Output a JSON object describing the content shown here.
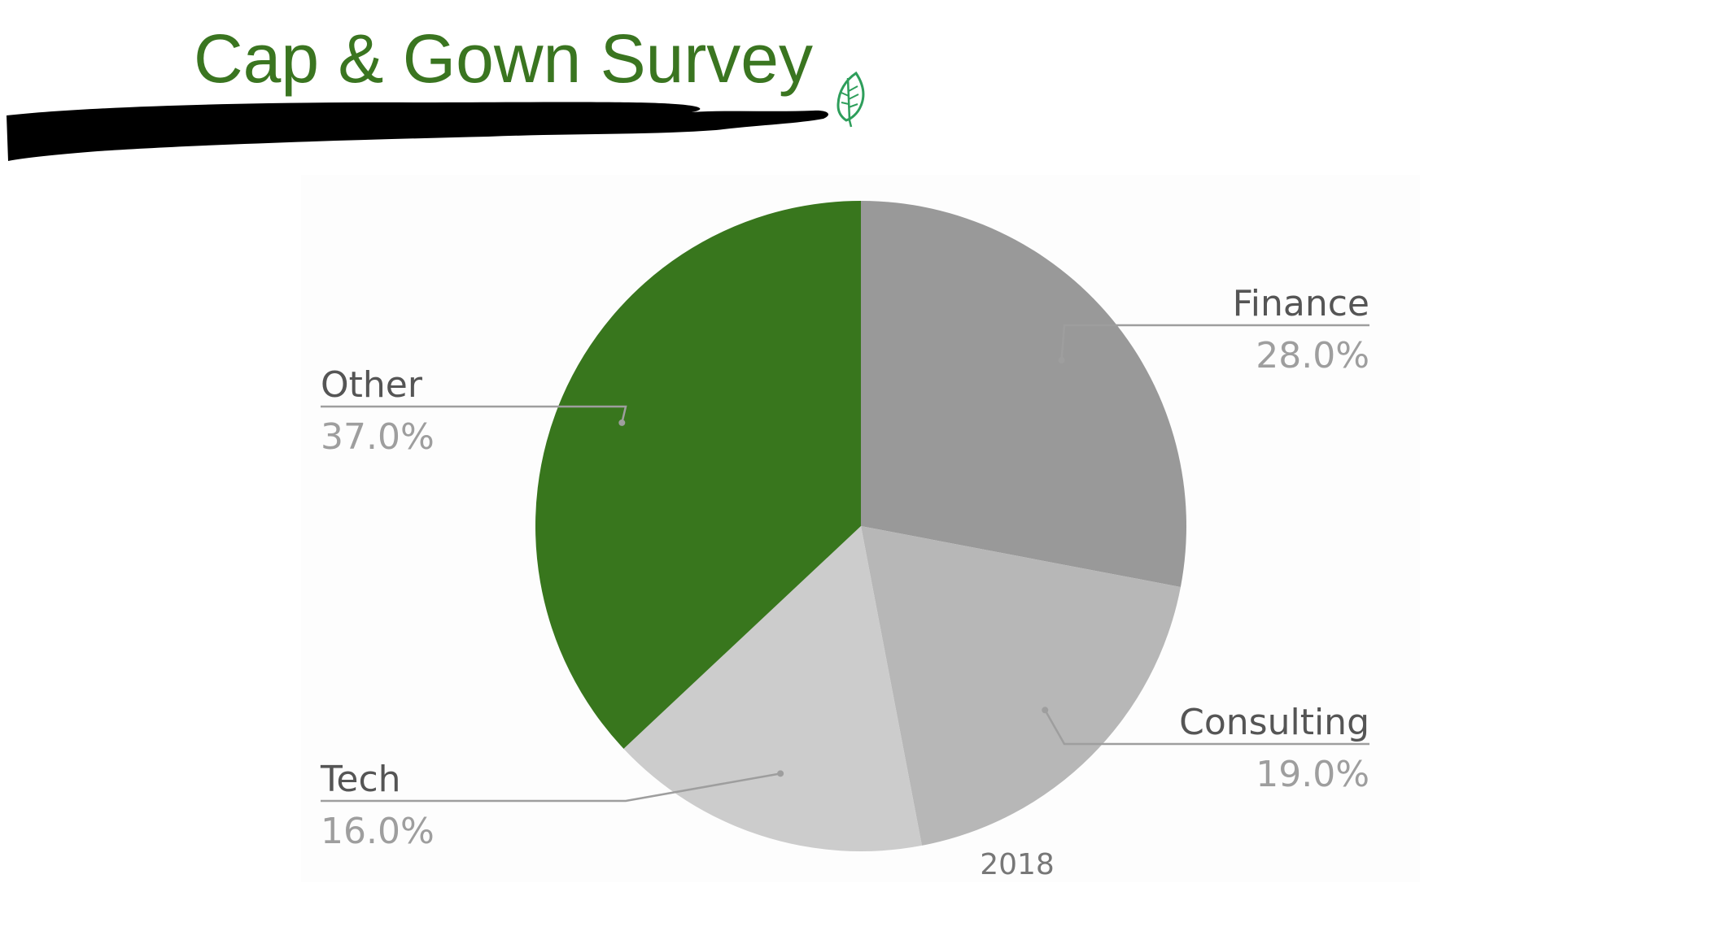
{
  "slide": {
    "title": "Cap & Gown Survey",
    "title_color": "#3a7520",
    "brush_color": "#000000",
    "leaf_icon": "leaf-icon"
  },
  "chart_data": {
    "type": "pie",
    "caption": "2018",
    "start_angle_deg": 0,
    "direction": "clockwise",
    "slices": [
      {
        "label": "Finance",
        "value": 28.0,
        "percent_label": "28.0%",
        "color": "#999999",
        "label_side": "right"
      },
      {
        "label": "Consulting",
        "value": 19.0,
        "percent_label": "19.0%",
        "color": "#b7b7b7",
        "label_side": "right"
      },
      {
        "label": "Tech",
        "value": 16.0,
        "percent_label": "16.0%",
        "color": "#cccccc",
        "label_side": "left"
      },
      {
        "label": "Other",
        "value": 37.0,
        "percent_label": "37.0%",
        "color": "#38761d",
        "label_side": "left"
      }
    ]
  }
}
